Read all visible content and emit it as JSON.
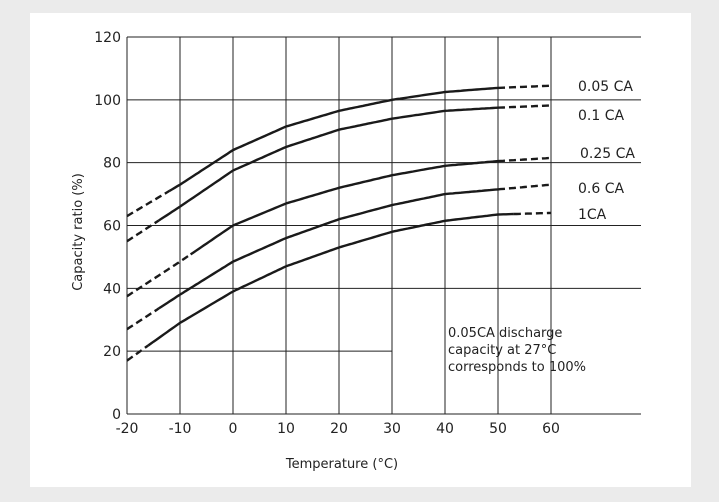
{
  "chart_data": {
    "type": "line",
    "title": "",
    "xlabel": "Temperature (°C)",
    "ylabel": "Capacity ratio (%)",
    "xlim": [
      -20,
      60
    ],
    "ylim": [
      0,
      120
    ],
    "x_ticks": [
      "-20",
      "-10",
      "0",
      "10",
      "20",
      "30",
      "40",
      "50",
      "60"
    ],
    "y_ticks": [
      "0",
      "20",
      "40",
      "60",
      "80",
      "100",
      "120"
    ],
    "grid": true,
    "series": [
      {
        "name": "0.05 CA",
        "points": [
          [
            -20,
            63
          ],
          [
            -10,
            73
          ],
          [
            0,
            84
          ],
          [
            10,
            91.5
          ],
          [
            20,
            96.5
          ],
          [
            30,
            100
          ],
          [
            40,
            102.5
          ],
          [
            50,
            103.8
          ],
          [
            60,
            104.5
          ]
        ],
        "dashed_segments": [
          [
            -20,
            -12
          ],
          [
            50,
            60
          ]
        ]
      },
      {
        "name": "0.1 CA",
        "points": [
          [
            -20,
            55
          ],
          [
            -10,
            66
          ],
          [
            0,
            77.5
          ],
          [
            10,
            85
          ],
          [
            20,
            90.5
          ],
          [
            30,
            94
          ],
          [
            40,
            96.5
          ],
          [
            50,
            97.5
          ],
          [
            60,
            98.2
          ]
        ],
        "dashed_segments": [
          [
            -20,
            -14
          ],
          [
            50,
            60
          ]
        ]
      },
      {
        "name": "0.25 CA",
        "points": [
          [
            -20,
            37.5
          ],
          [
            -10,
            48.5
          ],
          [
            0,
            60
          ],
          [
            10,
            67
          ],
          [
            20,
            72
          ],
          [
            30,
            76
          ],
          [
            40,
            79
          ],
          [
            50,
            80.5
          ],
          [
            60,
            81.5
          ]
        ],
        "dashed_segments": [
          [
            -20,
            -8
          ],
          [
            50,
            60
          ]
        ]
      },
      {
        "name": "0.6 CA",
        "points": [
          [
            -20,
            27
          ],
          [
            -10,
            38
          ],
          [
            0,
            48.5
          ],
          [
            10,
            56
          ],
          [
            20,
            62
          ],
          [
            30,
            66.5
          ],
          [
            40,
            70
          ],
          [
            50,
            71.5
          ],
          [
            60,
            73
          ]
        ],
        "dashed_segments": [
          [
            -20,
            -14
          ],
          [
            50,
            60
          ]
        ]
      },
      {
        "name": "1CA",
        "points": [
          [
            -20,
            17
          ],
          [
            -10,
            29
          ],
          [
            0,
            39
          ],
          [
            10,
            47
          ],
          [
            20,
            53
          ],
          [
            30,
            58
          ],
          [
            40,
            61.5
          ],
          [
            50,
            63.5
          ],
          [
            60,
            64
          ]
        ],
        "dashed_segments": [
          [
            -20,
            -16
          ],
          [
            53,
            60
          ]
        ]
      }
    ],
    "annotation": "0.05CA discharge capacity at 27°C corresponds to 100%",
    "annotation_lines": [
      "0.05CA discharge",
      "capacity at 27°C",
      "corresponds to 100%"
    ]
  }
}
